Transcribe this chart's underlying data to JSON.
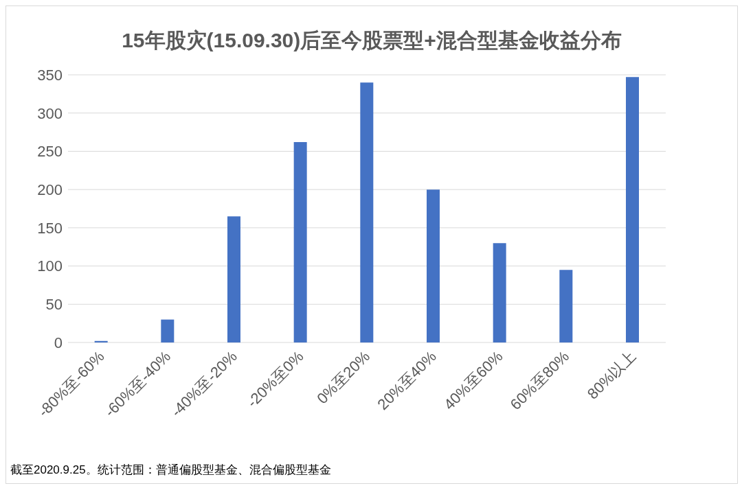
{
  "chart_data": {
    "type": "bar",
    "title": "15年股灾(15.09.30)后至今股票型+混合型基金收益分布",
    "categories": [
      "-80%至-60%",
      "-60%至-40%",
      "-40%至-20%",
      "-20%至0%",
      "0%至20%",
      "20%至40%",
      "40%至60%",
      "60%至80%",
      "80%以上"
    ],
    "values": [
      2,
      30,
      165,
      262,
      340,
      200,
      130,
      95,
      347
    ],
    "color": "#4472c4",
    "ylim": [
      0,
      350
    ],
    "yticks": [
      0,
      50,
      100,
      150,
      200,
      250,
      300,
      350
    ],
    "grid": "y",
    "annotations": [
      "截至2020.9.25。统计范围：普通偏股型基金、混合偏股型基金"
    ]
  }
}
